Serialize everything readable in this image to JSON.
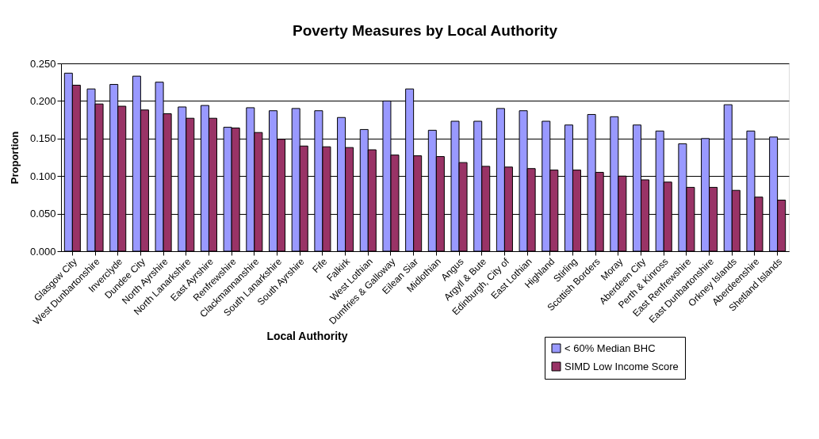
{
  "chart_data": {
    "type": "bar",
    "title": "Poverty Measures by Local Authority",
    "xlabel": "Local Authority",
    "ylabel": "Proportion",
    "categories": [
      "Glasgow City",
      "West Dunbartonshire",
      "Inverclyde",
      "Dundee City",
      "North Ayrshire",
      "North Lanarkshire",
      "East Ayrshire",
      "Renfrewshire",
      "Clackmannanshire",
      "South Lanarkshire",
      "South Ayrshire",
      "Fife",
      "Falkirk",
      "West Lothian",
      "Dumfries & Galloway",
      "Eilean Siar",
      "Midlothian",
      "Angus",
      "Argyll & Bute",
      "Edinburgh, City of",
      "East Lothian",
      "Highland",
      "Stirling",
      "Scottish Borders",
      "Moray",
      "Aberdeen City",
      "Perth & Kinross",
      "East Renfrewshire",
      "East Dunbartonshire",
      "Orkney Islands",
      "Aberdeenshire",
      "Shetland Islands"
    ],
    "series": [
      {
        "name": "< 60% Median BHC",
        "color": "#9999ff",
        "values": [
          0.237,
          0.216,
          0.222,
          0.233,
          0.225,
          0.192,
          0.194,
          0.165,
          0.191,
          0.187,
          0.19,
          0.187,
          0.178,
          0.162,
          0.2,
          0.216,
          0.161,
          0.173,
          0.173,
          0.19,
          0.187,
          0.173,
          0.168,
          0.182,
          0.179,
          0.168,
          0.16,
          0.143,
          0.15,
          0.195,
          0.16,
          0.152
        ]
      },
      {
        "name": "SIMD Low Income Score",
        "color": "#993366",
        "values": [
          0.221,
          0.196,
          0.193,
          0.188,
          0.183,
          0.177,
          0.177,
          0.164,
          0.158,
          0.149,
          0.14,
          0.139,
          0.138,
          0.135,
          0.128,
          0.127,
          0.126,
          0.118,
          0.113,
          0.112,
          0.11,
          0.108,
          0.108,
          0.105,
          0.1,
          0.095,
          0.092,
          0.085,
          0.085,
          0.081,
          0.072,
          0.068
        ]
      }
    ],
    "ylim": [
      0,
      0.25
    ],
    "yticks": [
      {
        "value": 0,
        "label": "0.000"
      },
      {
        "value": 0.05,
        "label": "0.050"
      },
      {
        "value": 0.1,
        "label": "0.100"
      },
      {
        "value": 0.15,
        "label": "0.150"
      },
      {
        "value": 0.2,
        "label": "0.200"
      },
      {
        "value": 0.25,
        "label": "0.250"
      }
    ],
    "grid": "y",
    "legend": "bottom right"
  }
}
